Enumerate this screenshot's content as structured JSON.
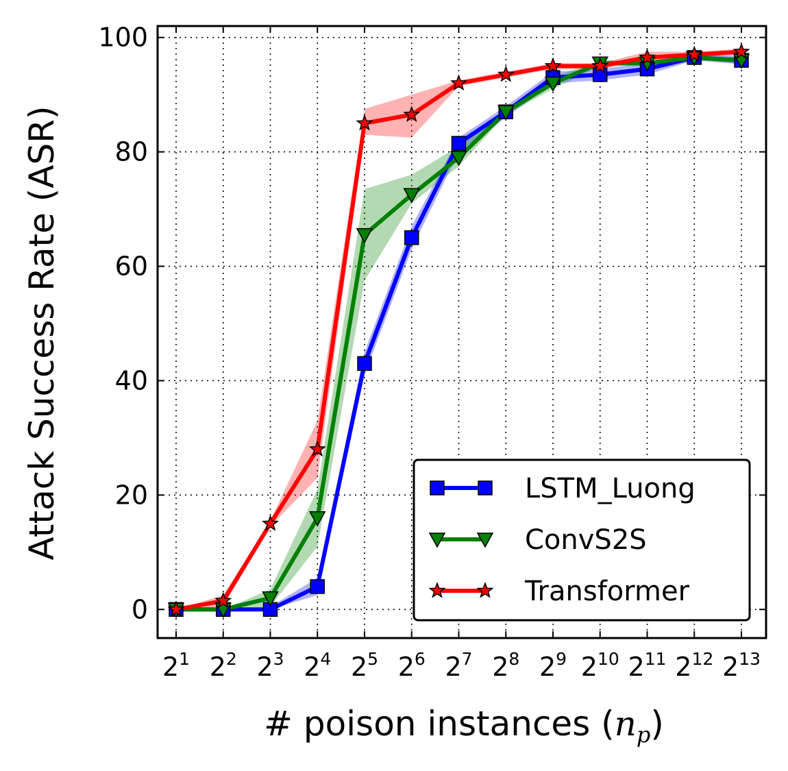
{
  "chart_data": {
    "type": "line",
    "title": "",
    "xlabel_prefix": "# poison instances (",
    "xlabel_var": "n",
    "xlabel_sub": "p",
    "xlabel_suffix": ")",
    "ylabel": "Attack Success Rate (ASR)",
    "x_base": "2",
    "x_exponents": [
      "1",
      "2",
      "3",
      "4",
      "5",
      "6",
      "7",
      "8",
      "9",
      "10",
      "11",
      "12",
      "13"
    ],
    "ylim": [
      -5,
      102
    ],
    "yticks": [
      0,
      20,
      40,
      60,
      80,
      100
    ],
    "grid": true,
    "legend_position": "lower-right",
    "series": [
      {
        "name": "LSTM_Luong",
        "color": "#0000ff",
        "marker": "square",
        "values": [
          0,
          0,
          0,
          4,
          43,
          65,
          81.5,
          87,
          93,
          93.5,
          94.5,
          96.5,
          96
        ],
        "lower": [
          0,
          0,
          0,
          2.5,
          41,
          63,
          80,
          86,
          92,
          92.5,
          93.5,
          96,
          95.3
        ],
        "upper": [
          0,
          0,
          0.5,
          5.5,
          45,
          67,
          82.5,
          88,
          94,
          94.5,
          95.5,
          97,
          96.8
        ]
      },
      {
        "name": "ConvS2S",
        "color": "#008000",
        "marker": "triangle-down",
        "values": [
          0,
          0,
          2,
          16,
          65.5,
          72.5,
          79,
          87,
          92,
          95.5,
          95.5,
          96.5,
          96
        ],
        "lower": [
          0,
          0,
          0.5,
          11,
          57.5,
          71,
          77.5,
          86.5,
          91,
          95,
          95,
          96,
          95.5
        ],
        "upper": [
          0,
          0,
          3.5,
          21,
          73.5,
          76,
          81,
          87.5,
          93,
          96,
          96,
          97,
          96.5
        ]
      },
      {
        "name": "Transformer",
        "color": "#ff0000",
        "marker": "star",
        "values": [
          0,
          1.5,
          15,
          28,
          85,
          86.5,
          92,
          93.5,
          95,
          95,
          96.5,
          97,
          97.5
        ],
        "lower": [
          0,
          0.5,
          14.5,
          23,
          83,
          82.5,
          91.5,
          93,
          94.5,
          94.5,
          96,
          96.5,
          97
        ],
        "upper": [
          0,
          2.5,
          15.5,
          33,
          87.5,
          90,
          92.5,
          94,
          95.5,
          95.5,
          97.5,
          97.5,
          98
        ]
      }
    ]
  }
}
